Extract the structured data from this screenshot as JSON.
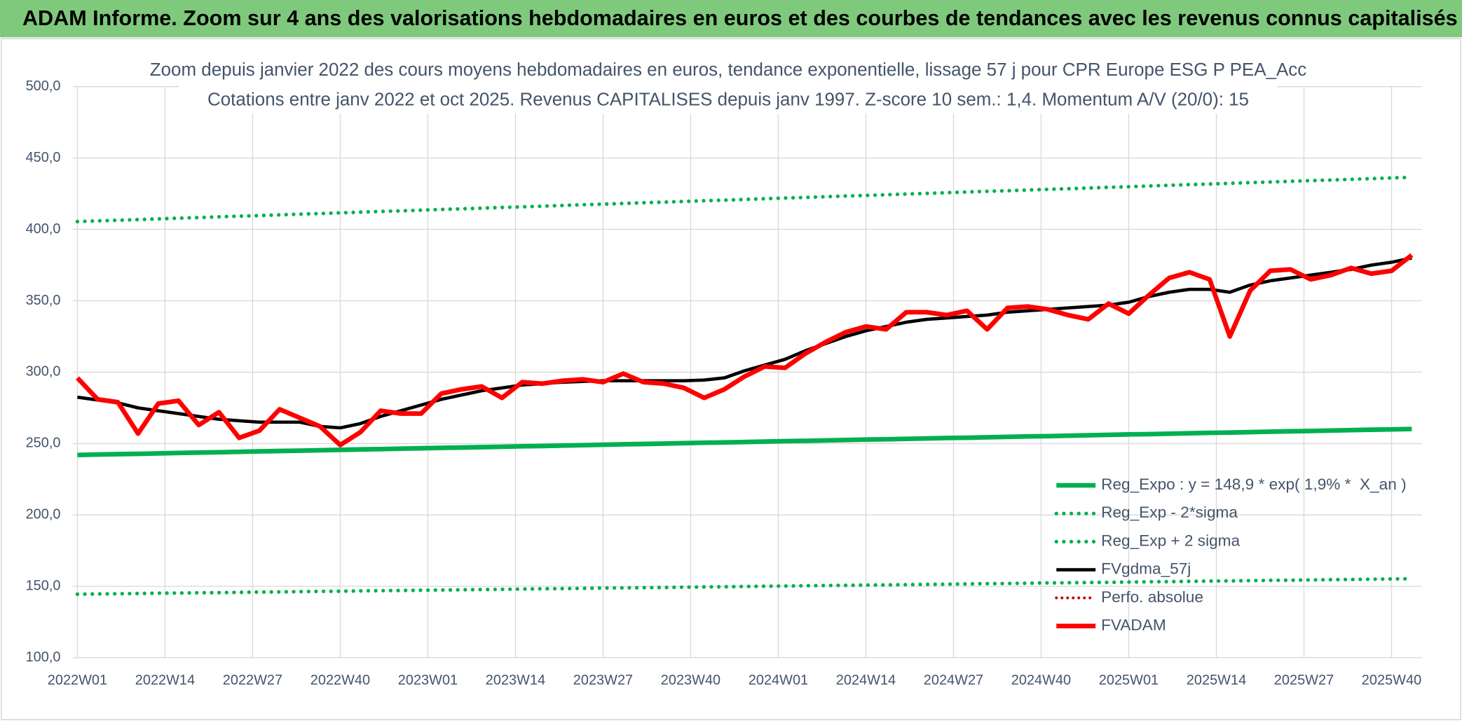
{
  "header": {
    "title": "ADAM Informe. Zoom sur 4 ans des valorisations hebdomadaires en euros et des courbes de tendances avec les revenus connus capitalisés"
  },
  "chart_data": {
    "type": "line",
    "title": "Zoom depuis janvier 2022 des cours moyens hebdomadaires en euros, tendance exponentielle, lissage 57 j pour CPR Europe ESG P PEA_Acc",
    "subtitle": "Cotations entre janv 2022 et oct 2025. Revenus CAPITALISES depuis janv 1997. Z-score 10 sem.: 1,4. Momentum A/V (20/0): 15",
    "x": [
      0,
      3,
      6,
      9,
      12,
      15,
      18,
      21,
      24,
      27,
      30,
      33,
      36,
      39,
      42,
      45,
      48,
      51,
      54,
      57,
      60,
      63,
      66,
      69,
      72,
      75,
      78,
      81,
      84,
      87,
      90,
      93,
      96,
      99,
      102,
      105,
      108,
      111,
      114,
      117,
      120,
      123,
      126,
      129,
      132,
      135,
      138,
      141,
      144,
      147,
      150,
      153,
      156,
      159,
      162,
      165,
      168,
      171,
      174,
      177,
      180,
      183,
      186,
      189,
      192,
      195,
      198
    ],
    "xlim": [
      0,
      199.5
    ],
    "xticks": [
      {
        "value": 0,
        "label": "2022W01"
      },
      {
        "value": 13,
        "label": "2022W14"
      },
      {
        "value": 26,
        "label": "2022W27"
      },
      {
        "value": 39,
        "label": "2022W40"
      },
      {
        "value": 52,
        "label": "2023W01"
      },
      {
        "value": 65,
        "label": "2023W14"
      },
      {
        "value": 78,
        "label": "2023W27"
      },
      {
        "value": 91,
        "label": "2023W40"
      },
      {
        "value": 104,
        "label": "2024W01"
      },
      {
        "value": 117,
        "label": "2024W14"
      },
      {
        "value": 130,
        "label": "2024W27"
      },
      {
        "value": 143,
        "label": "2024W40"
      },
      {
        "value": 156,
        "label": "2025W01"
      },
      {
        "value": 169,
        "label": "2025W14"
      },
      {
        "value": 182,
        "label": "2025W27"
      },
      {
        "value": 195,
        "label": "2025W40"
      }
    ],
    "ylim": [
      100,
      500
    ],
    "yticks": [
      {
        "value": 100,
        "label": "100,0"
      },
      {
        "value": 150,
        "label": "150,0"
      },
      {
        "value": 200,
        "label": "200,0"
      },
      {
        "value": 250,
        "label": "250,0"
      },
      {
        "value": 300,
        "label": "300,0"
      },
      {
        "value": 350,
        "label": "350,0"
      },
      {
        "value": 400,
        "label": "400,0"
      },
      {
        "value": 450,
        "label": "450,0"
      },
      {
        "value": 500,
        "label": "500,0"
      }
    ],
    "grid": true,
    "series": [
      {
        "name": "Reg_Expo : y = 148,9 * exp( 1,9% *  X_an )",
        "color": "#00b050",
        "style": "solid",
        "width": 5,
        "values": [
          242.0,
          242.3,
          242.6,
          242.8,
          243.1,
          243.4,
          243.7,
          243.9,
          244.2,
          244.5,
          244.8,
          245.0,
          245.3,
          245.6,
          245.9,
          246.1,
          246.4,
          246.7,
          247.0,
          247.2,
          247.5,
          247.8,
          248.1,
          248.3,
          248.6,
          248.9,
          249.2,
          249.5,
          249.7,
          250.0,
          250.3,
          250.6,
          250.8,
          251.1,
          251.4,
          251.7,
          251.9,
          252.2,
          252.5,
          252.8,
          253.0,
          253.3,
          253.6,
          253.9,
          254.1,
          254.4,
          254.7,
          255.0,
          255.2,
          255.5,
          255.8,
          256.1,
          256.4,
          256.6,
          256.9,
          257.2,
          257.5,
          257.7,
          258.0,
          258.3,
          258.6,
          258.8,
          259.1,
          259.4,
          259.7,
          259.9,
          260.2
        ]
      },
      {
        "name": "Reg_Exp - 2*sigma",
        "color": "#00b050",
        "style": "dotted",
        "width": 4,
        "values": [
          144.5,
          144.7,
          144.8,
          145.0,
          145.2,
          145.3,
          145.5,
          145.6,
          145.8,
          146.0,
          146.1,
          146.3,
          146.5,
          146.6,
          146.8,
          147.0,
          147.1,
          147.3,
          147.4,
          147.6,
          147.8,
          147.9,
          148.1,
          148.3,
          148.4,
          148.6,
          148.8,
          148.9,
          149.1,
          149.2,
          149.4,
          149.6,
          149.7,
          149.9,
          150.1,
          150.2,
          150.4,
          150.6,
          150.7,
          150.9,
          151.0,
          151.2,
          151.4,
          151.5,
          151.7,
          151.9,
          152.0,
          152.2,
          152.4,
          152.5,
          152.7,
          152.8,
          153.0,
          153.2,
          153.3,
          153.5,
          153.7,
          153.8,
          154.0,
          154.2,
          154.3,
          154.5,
          154.7,
          154.8,
          155.0,
          155.2,
          155.3
        ]
      },
      {
        "name": "Reg_Exp + 2 sigma",
        "color": "#00b050",
        "style": "dotted",
        "width": 4,
        "values": [
          405.5,
          406.0,
          406.4,
          406.9,
          407.4,
          407.9,
          408.3,
          408.8,
          409.3,
          409.7,
          410.2,
          410.7,
          411.1,
          411.6,
          412.1,
          412.6,
          413.0,
          413.5,
          414.0,
          414.4,
          414.9,
          415.4,
          415.8,
          416.3,
          416.8,
          417.3,
          417.7,
          418.2,
          418.7,
          419.1,
          419.6,
          420.1,
          420.5,
          421.0,
          421.5,
          422.0,
          422.4,
          422.9,
          423.4,
          423.8,
          424.3,
          424.8,
          425.2,
          425.7,
          426.2,
          426.7,
          427.1,
          427.6,
          428.1,
          428.5,
          429.0,
          429.5,
          429.9,
          430.4,
          430.9,
          431.4,
          431.8,
          432.3,
          432.8,
          433.2,
          433.7,
          434.2,
          434.6,
          435.1,
          435.6,
          436.1,
          436.5
        ]
      },
      {
        "name": "FVgdma_57j",
        "color": "#000000",
        "style": "solid",
        "width": 3.5,
        "values": [
          282.5,
          280.5,
          278.5,
          275,
          273,
          271,
          269,
          267,
          266,
          265,
          265,
          265,
          262,
          261,
          264,
          269,
          273,
          277,
          281,
          284,
          287,
          289,
          291,
          292,
          293,
          293.5,
          294,
          294,
          294,
          294,
          294,
          294.5,
          296,
          301,
          305,
          309,
          315,
          320,
          325,
          329,
          332,
          335,
          337,
          338,
          339,
          340,
          342,
          343,
          344,
          345,
          346,
          347,
          349,
          353,
          356,
          358,
          358,
          356,
          361,
          364,
          366,
          368,
          370,
          372,
          375,
          377,
          380
        ]
      },
      {
        "name": "Perfo. absolue",
        "color": "#c00000",
        "style": "dotted",
        "width": 3,
        "values": [
          null,
          null,
          null,
          null,
          null,
          null,
          null,
          null,
          null,
          null,
          null,
          null,
          null,
          null,
          null,
          null,
          null,
          null,
          null,
          null,
          null,
          null,
          null,
          null,
          null,
          null,
          null,
          null,
          null,
          null,
          null,
          null,
          null,
          null,
          null,
          null,
          null,
          null,
          null,
          null,
          null,
          null,
          null,
          null,
          null,
          null,
          null,
          null,
          null,
          null,
          null,
          null,
          null,
          null,
          null,
          null,
          null,
          null,
          null,
          null,
          null,
          null,
          null,
          null,
          null,
          null,
          null
        ]
      },
      {
        "name": "FVADAM",
        "color": "#ff0000",
        "style": "solid",
        "width": 5,
        "values": [
          296,
          281,
          279,
          257,
          278,
          280,
          263,
          272,
          254,
          259,
          274,
          268,
          262,
          249,
          258,
          273,
          271,
          271,
          285,
          288,
          290,
          282,
          293,
          292,
          294,
          295,
          293,
          299,
          293,
          292,
          289,
          282,
          288,
          297,
          304,
          303,
          313,
          321,
          328,
          332,
          330,
          342,
          342,
          340,
          343,
          330,
          345,
          346,
          344,
          340,
          337,
          348,
          341,
          354,
          366,
          370,
          365,
          325,
          357,
          371,
          372,
          365,
          368,
          373,
          369,
          371,
          382
        ]
      }
    ]
  }
}
